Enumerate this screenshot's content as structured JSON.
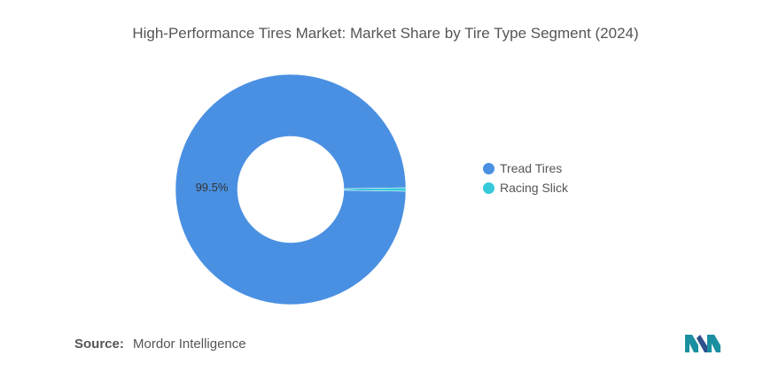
{
  "chart_data": {
    "type": "pie",
    "title": "High-Performance Tires Market: Market Share by Tire Type Segment (2024)",
    "categories": [
      "Tread Tires",
      "Racing Slick"
    ],
    "values": [
      99.5,
      0.5
    ],
    "data_labels": [
      "99.5%",
      ""
    ],
    "colors": [
      "#4A90E2",
      "#35C9D9"
    ],
    "donut": true,
    "legend_position": "right"
  },
  "source": {
    "label": "Source:",
    "text": "Mordor Intelligence"
  },
  "logo": {
    "icon": "mordor-intelligence-logo-icon",
    "colors": [
      "#1a8fa0",
      "#2d4f8b"
    ]
  }
}
